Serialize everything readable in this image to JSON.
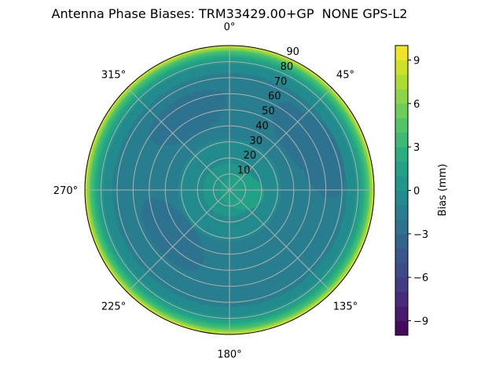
{
  "chart_data": {
    "type": "heatmap",
    "projection": "polar",
    "title": "Antenna Phase Biases: TRM33429.00+GP  NONE GPS-L2",
    "colormap": "viridis",
    "colorbar": {
      "label": "Bias (mm)",
      "range": [
        -10,
        10
      ],
      "level_step": 1,
      "ticks": [
        "−9",
        "−6",
        "−3",
        "0",
        "3",
        "6",
        "9"
      ],
      "tick_values": [
        -9,
        -6,
        -3,
        0,
        3,
        6,
        9
      ]
    },
    "angular_ticks": [
      "0°",
      "45°",
      "90°",
      "135°",
      "180°",
      "225°",
      "270°",
      "315°"
    ],
    "angular_tick_values": [
      0,
      45,
      90,
      135,
      180,
      225,
      270,
      315
    ],
    "angular_direction": "clockwise",
    "zero_location": "top",
    "radial_ticks": [
      "10",
      "20",
      "30",
      "40",
      "50",
      "60",
      "70",
      "80",
      "90"
    ],
    "radial_tick_values": [
      10,
      20,
      30,
      40,
      50,
      60,
      70,
      80,
      90
    ],
    "radial_range": [
      0,
      90
    ],
    "grid": true,
    "radial_profile": {
      "zenith": [
        0,
        10,
        20,
        30,
        40,
        50,
        60,
        70,
        75,
        80,
        83,
        86,
        88,
        90
      ],
      "bias": [
        0.6,
        0.4,
        -0.2,
        -0.9,
        -1.4,
        -1.7,
        -1.7,
        -1.4,
        -0.8,
        0.3,
        1.8,
        3.8,
        6,
        9.5
      ]
    },
    "anomalies": [
      {
        "azimuth": 55,
        "zenith": 55,
        "bias": -2.6
      },
      {
        "azimuth": 70,
        "zenith": 60,
        "bias": -2.4
      },
      {
        "azimuth": 232,
        "zenith": 45,
        "bias": -2.6
      },
      {
        "azimuth": 330,
        "zenith": 52,
        "bias": -2.2
      },
      {
        "azimuth": 100,
        "zenith": 8,
        "bias": 1.0
      }
    ]
  }
}
